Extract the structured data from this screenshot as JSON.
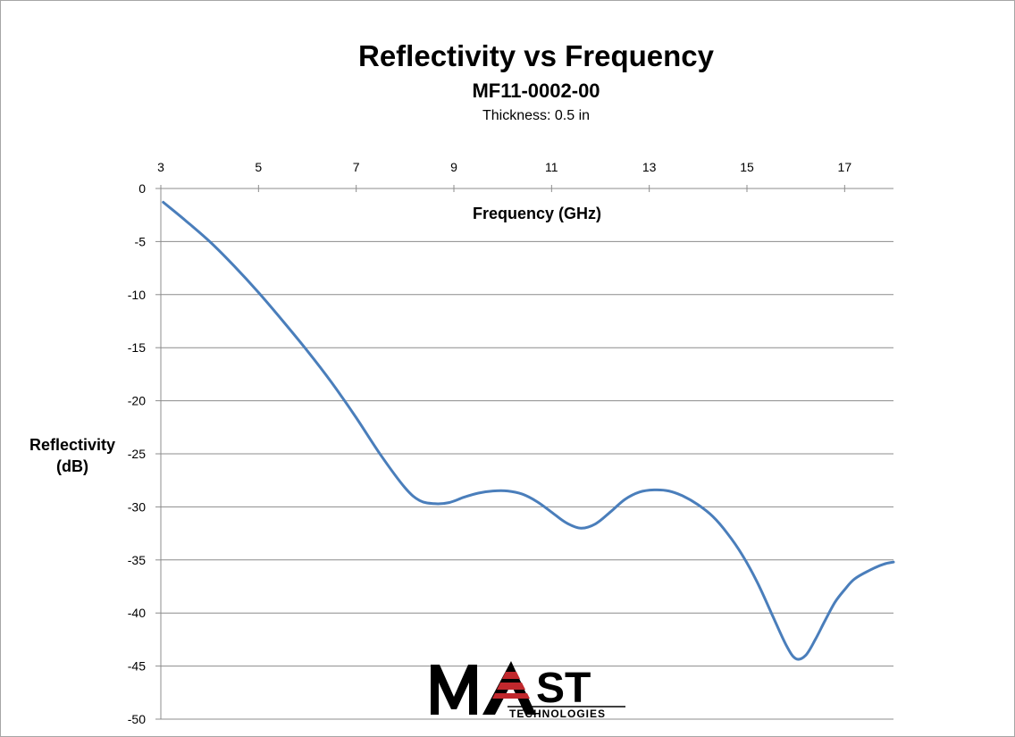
{
  "chart_data": {
    "type": "line",
    "title": "Reflectivity vs Frequency",
    "subtitle": "MF11-0002-00",
    "note": "Thickness: 0.5 in",
    "xlabel": "Frequency (GHz)",
    "ylabel_lines": [
      "Reflectivity",
      "(dB)"
    ],
    "xlim": [
      3,
      18
    ],
    "ylim": [
      -50,
      0
    ],
    "x_ticks": [
      3,
      5,
      7,
      9,
      11,
      13,
      15,
      17
    ],
    "y_ticks": [
      0,
      -5,
      -10,
      -15,
      -20,
      -25,
      -30,
      -35,
      -40,
      -45,
      -50
    ],
    "x_axis_position": "top",
    "grid": "horizontal",
    "legend": "none",
    "series": [
      {
        "color": "#4a7ebb",
        "x": [
          3.05,
          3.5,
          4,
          4.5,
          5,
          5.5,
          6,
          6.5,
          7,
          7.5,
          8,
          8.3,
          8.6,
          8.9,
          9.2,
          9.5,
          9.8,
          10.1,
          10.4,
          10.7,
          11,
          11.3,
          11.6,
          11.9,
          12.2,
          12.5,
          12.8,
          13.1,
          13.4,
          13.7,
          14,
          14.3,
          14.6,
          14.9,
          15.2,
          15.5,
          15.8,
          16.0,
          16.2,
          16.4,
          16.6,
          16.8,
          17.0,
          17.2,
          17.5,
          17.8,
          18.0
        ],
        "y": [
          -1.3,
          -3.0,
          -5.0,
          -7.3,
          -9.8,
          -12.5,
          -15.3,
          -18.3,
          -21.6,
          -25.1,
          -28.2,
          -29.4,
          -29.7,
          -29.6,
          -29.1,
          -28.7,
          -28.5,
          -28.5,
          -28.8,
          -29.5,
          -30.5,
          -31.5,
          -32.0,
          -31.6,
          -30.5,
          -29.3,
          -28.6,
          -28.4,
          -28.5,
          -29.0,
          -29.8,
          -30.9,
          -32.5,
          -34.5,
          -37.0,
          -40.0,
          -43.0,
          -44.3,
          -44.0,
          -42.5,
          -40.7,
          -39.0,
          -37.8,
          -36.8,
          -36.0,
          -35.4,
          -35.2
        ]
      }
    ]
  },
  "logo": {
    "name": "MAST",
    "wordmark_left": "M",
    "wordmark_right": "ST",
    "tagline": "TECHNOLOGIES",
    "accent_color": "#c0282d"
  }
}
